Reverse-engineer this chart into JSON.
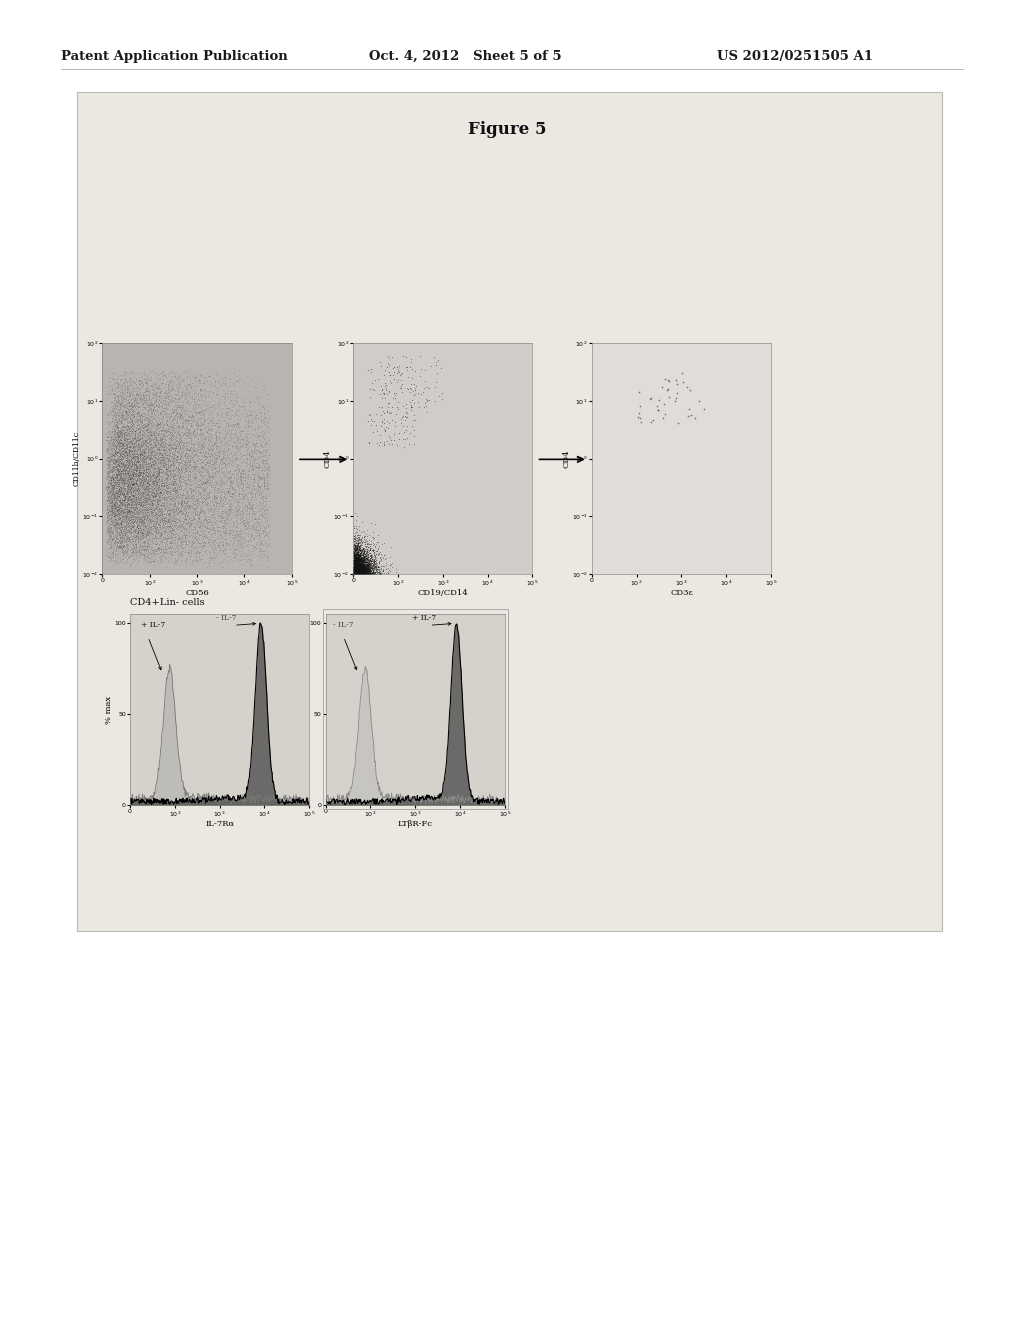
{
  "header_left": "Patent Application Publication",
  "header_mid": "Oct. 4, 2012   Sheet 5 of 5",
  "header_right": "US 2012/0251505 A1",
  "figure_title": "Figure 5",
  "scatter1_xlabel": "CD56",
  "scatter1_ylabel": "CD11b/CD11c",
  "scatter2_xlabel": "CD19/CD14",
  "scatter2_ylabel": "CD4",
  "scatter3_xlabel": "CD3ε",
  "scatter3_ylabel": "CD4",
  "hist1_xlabel": "IL-7Rα",
  "hist2_xlabel": "LTβR-Fc",
  "hist_ylabel": "% max",
  "hist_label": "CD4+Lin- cells",
  "page_bg": "#ffffff",
  "outer_box_bg": "#ebe8e2",
  "scatter1_bg": "#b8b5b0",
  "scatter2_bg": "#d0cdc8",
  "scatter3_bg": "#e0ddd8",
  "hist_bg": "#d5d2cc",
  "header_fontsize": 9.5,
  "title_fontsize": 12,
  "axis_label_fontsize": 6,
  "tick_fontsize": 4.5,
  "annot_fontsize": 5.5
}
